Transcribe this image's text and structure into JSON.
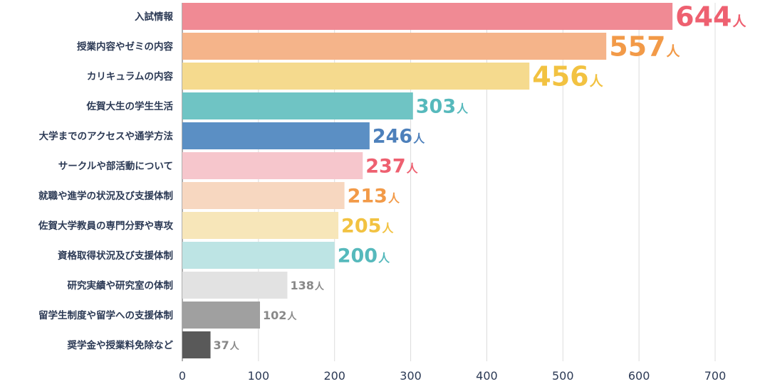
{
  "chart_data": {
    "type": "bar",
    "orientation": "horizontal",
    "unit": "人",
    "xlim": [
      0,
      700
    ],
    "xticks": [
      "0",
      "100",
      "200",
      "300",
      "400",
      "500",
      "600",
      "700"
    ],
    "grid": true,
    "categories": [
      "入試情報",
      "授業内容やゼミの内容",
      "カリキュラムの内容",
      "佐賀大生の学生生活",
      "大学までのアクセスや通学方法",
      "サークルや部活動について",
      "就職や進学の状況及び支援体制",
      "佐賀大学教員の専門分野や専攻",
      "資格取得状況及び支援体制",
      "研究実績や研究室の体制",
      "留学生制度や留学への支援体制",
      "奨学金や授業料免除など"
    ],
    "values": [
      644,
      557,
      456,
      303,
      246,
      237,
      213,
      205,
      200,
      138,
      102,
      37
    ],
    "value_labels": [
      "644",
      "557",
      "456",
      "303",
      "246",
      "237",
      "213",
      "205",
      "200",
      "138",
      "102",
      "37"
    ],
    "bar_colors": [
      "#f08a94",
      "#f5b48a",
      "#f5da8e",
      "#6fc4c4",
      "#5b8fc4",
      "#f6c6cc",
      "#f7d7c0",
      "#f7e6b9",
      "#bde4e4",
      "#e2e2e2",
      "#a0a0a0",
      "#595959"
    ],
    "label_colors": [
      "#ee6070",
      "#f29a48",
      "#f2c241",
      "#56b9bc",
      "#4d80bb",
      "#ee6070",
      "#f29a48",
      "#f2c241",
      "#56b9bc",
      "#888888",
      "#888888",
      "#888888"
    ]
  }
}
